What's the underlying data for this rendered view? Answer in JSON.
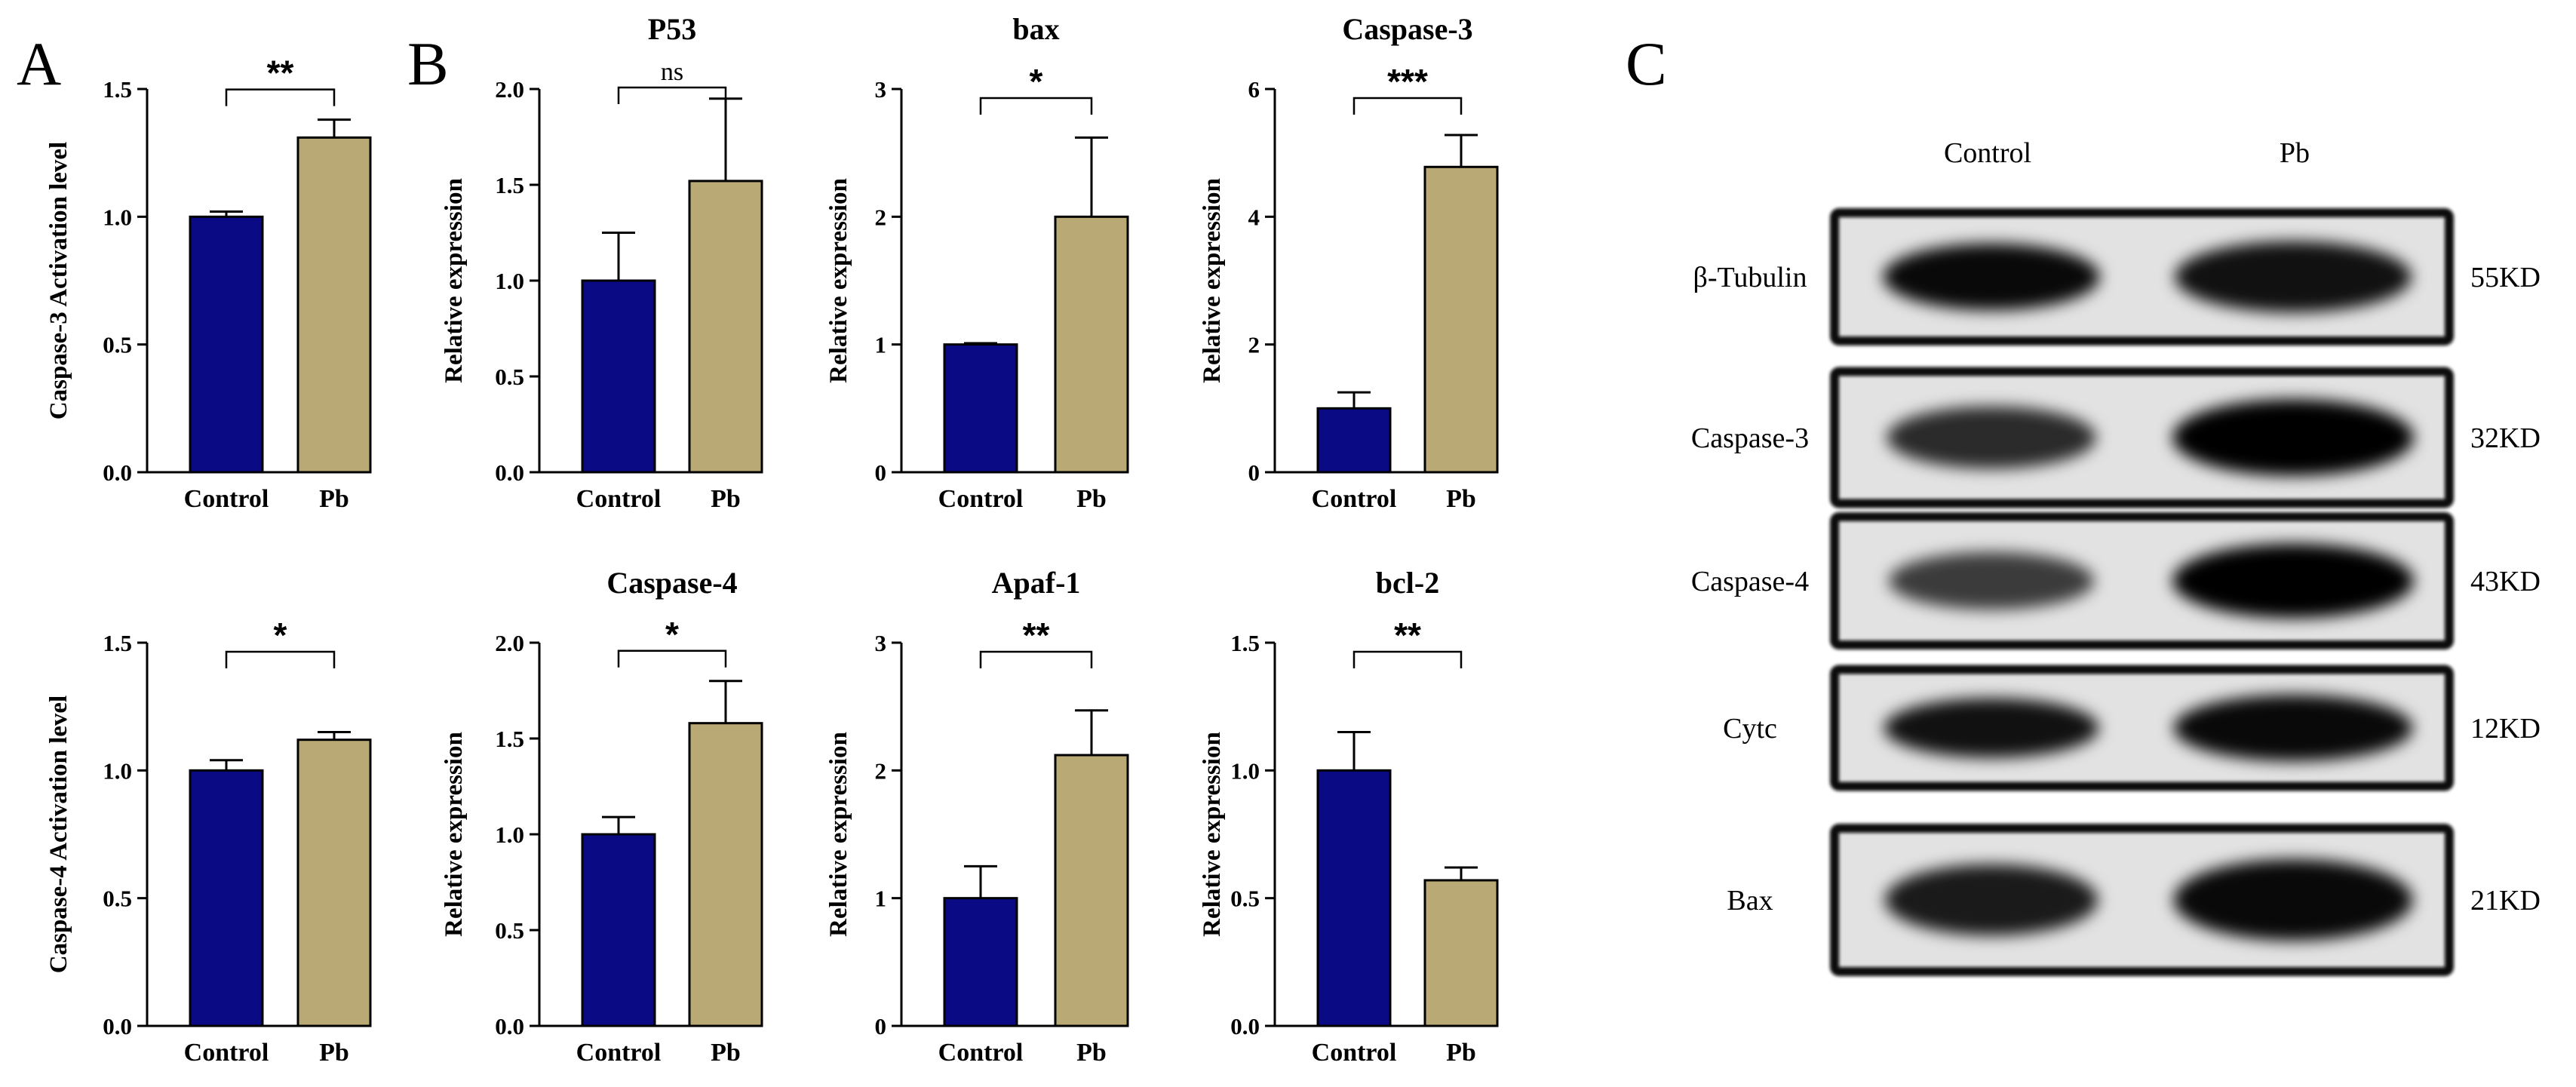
{
  "panels": {
    "A": "A",
    "B": "B",
    "C": "C"
  },
  "colors": {
    "control": "#0a0a85",
    "pb": "#b9aa75",
    "axis": "#000000"
  },
  "chart_data": [
    {
      "id": "a_casp3",
      "type": "bar",
      "title": "",
      "ylabel": "Caspase-3 Activation level",
      "categories": [
        "Control",
        "Pb"
      ],
      "values": [
        1.0,
        1.31
      ],
      "errors": [
        0.02,
        0.07
      ],
      "ylim": [
        0,
        1.5
      ],
      "yticks": [
        "0.0",
        "0.5",
        "1.0",
        "1.5"
      ],
      "significance": "**"
    },
    {
      "id": "a_casp4",
      "type": "bar",
      "title": "",
      "ylabel": "Caspase-4 Activation level",
      "categories": [
        "Control",
        "Pb"
      ],
      "values": [
        1.0,
        1.12
      ],
      "errors": [
        0.04,
        0.03
      ],
      "ylim": [
        0,
        1.5
      ],
      "yticks": [
        "0.0",
        "0.5",
        "1.0",
        "1.5"
      ],
      "significance": "*"
    },
    {
      "id": "b_p53",
      "type": "bar",
      "title": "P53",
      "ylabel": "Relative expression",
      "categories": [
        "Control",
        "Pb"
      ],
      "values": [
        1.0,
        1.52
      ],
      "errors": [
        0.25,
        0.43
      ],
      "ylim": [
        0,
        2.0
      ],
      "yticks": [
        "0.0",
        "0.5",
        "1.0",
        "1.5",
        "2.0"
      ],
      "significance": "ns"
    },
    {
      "id": "b_bax",
      "type": "bar",
      "title": "bax",
      "ylabel": "Relative expression",
      "categories": [
        "Control",
        "Pb"
      ],
      "values": [
        1.0,
        2.0
      ],
      "errors": [
        0.01,
        0.62
      ],
      "ylim": [
        0,
        3
      ],
      "yticks": [
        "0",
        "1",
        "2",
        "3"
      ],
      "significance": "*"
    },
    {
      "id": "b_casp3",
      "type": "bar",
      "title": "Caspase-3",
      "ylabel": "Relative expression",
      "categories": [
        "Control",
        "Pb"
      ],
      "values": [
        1.0,
        4.78
      ],
      "errors": [
        0.25,
        0.5
      ],
      "ylim": [
        0,
        6
      ],
      "yticks": [
        "0",
        "2",
        "4",
        "6"
      ],
      "significance": "***"
    },
    {
      "id": "b_casp4",
      "type": "bar",
      "title": "Caspase-4",
      "ylabel": "Relative expression",
      "categories": [
        "Control",
        "Pb"
      ],
      "values": [
        1.0,
        1.58
      ],
      "errors": [
        0.09,
        0.22
      ],
      "ylim": [
        0,
        2.0
      ],
      "yticks": [
        "0.0",
        "0.5",
        "1.0",
        "1.5",
        "2.0"
      ],
      "significance": "*"
    },
    {
      "id": "b_apaf1",
      "type": "bar",
      "title": "Apaf-1",
      "ylabel": "Relative expression",
      "categories": [
        "Control",
        "Pb"
      ],
      "values": [
        1.0,
        2.12
      ],
      "errors": [
        0.25,
        0.35
      ],
      "ylim": [
        0,
        3
      ],
      "yticks": [
        "0",
        "1",
        "2",
        "3"
      ],
      "significance": "**"
    },
    {
      "id": "b_bcl2",
      "type": "bar",
      "title": "bcl-2",
      "ylabel": "Relative expression",
      "categories": [
        "Control",
        "Pb"
      ],
      "values": [
        1.0,
        0.57
      ],
      "errors": [
        0.15,
        0.05
      ],
      "ylim": [
        0,
        1.5
      ],
      "yticks": [
        "0.0",
        "0.5",
        "1.0",
        "1.5"
      ],
      "significance": "**"
    }
  ],
  "western_blot": {
    "columns": [
      "Control",
      "Pb"
    ],
    "rows": [
      {
        "protein": "β-Tubulin",
        "size": "55KD",
        "control_intensity": 0.95,
        "pb_intensity": 0.9
      },
      {
        "protein": "Caspase-3",
        "size": "32KD",
        "control_intensity": 0.75,
        "pb_intensity": 1.0
      },
      {
        "protein": "Caspase-4",
        "size": "43KD",
        "control_intensity": 0.65,
        "pb_intensity": 1.0
      },
      {
        "protein": "Cytc",
        "size": "12KD",
        "control_intensity": 0.9,
        "pb_intensity": 0.95
      },
      {
        "protein": "Bax",
        "size": "21KD",
        "control_intensity": 0.85,
        "pb_intensity": 0.95
      }
    ]
  }
}
